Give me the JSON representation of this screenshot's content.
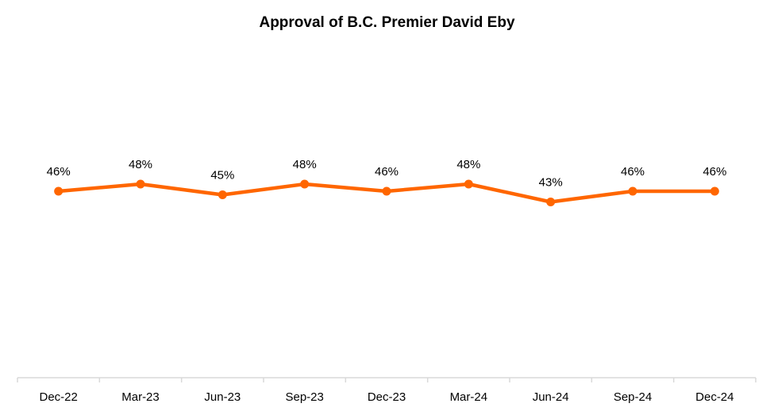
{
  "chart_data": {
    "type": "line",
    "title": "Approval of B.C. Premier David Eby",
    "xlabel": "",
    "ylabel": "",
    "categories": [
      "Dec-22",
      "Mar-23",
      "Jun-23",
      "Sep-23",
      "Dec-23",
      "Mar-24",
      "Jun-24",
      "Sep-24",
      "Dec-24"
    ],
    "series": [
      {
        "values": [
          46,
          48,
          45,
          48,
          46,
          48,
          43,
          46,
          46
        ],
        "labels": [
          "46%",
          "48%",
          "45%",
          "48%",
          "46%",
          "48%",
          "43%",
          "46%",
          "46%"
        ],
        "color": "#ff6600"
      }
    ],
    "ylim": [
      0,
      100
    ],
    "grid": false,
    "legend": "none"
  }
}
